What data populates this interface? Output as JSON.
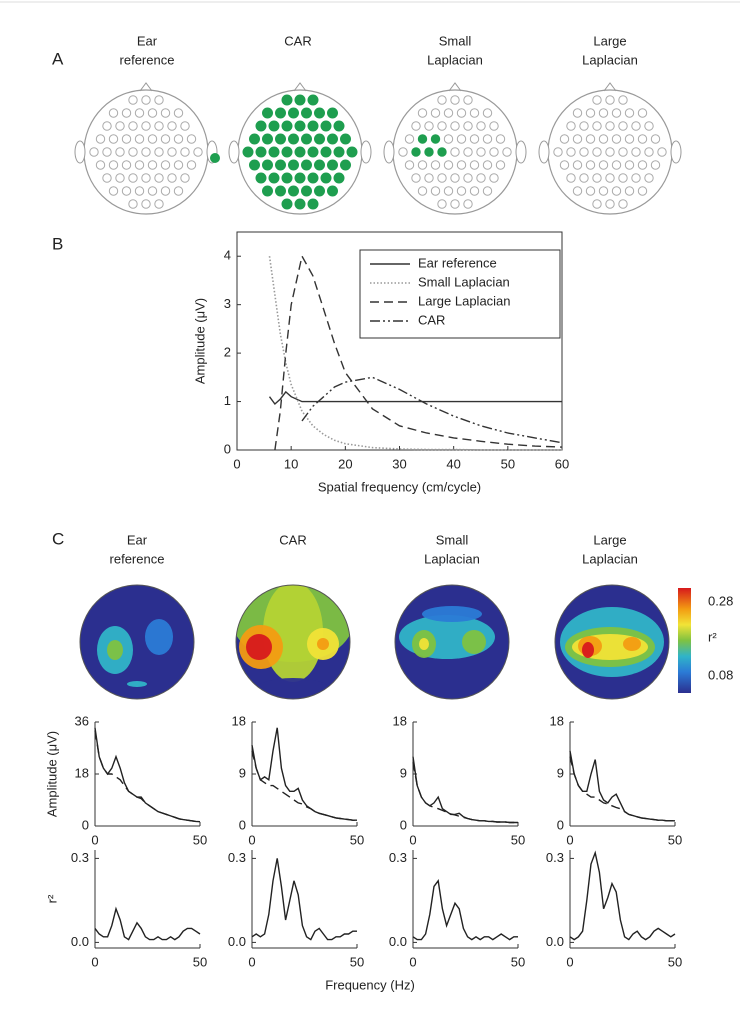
{
  "panel_labels": [
    "A",
    "B",
    "C"
  ],
  "panel_a": {
    "titles": [
      [
        "Ear",
        "reference"
      ],
      [
        "CAR"
      ],
      [
        "Small",
        "Laplacian"
      ],
      [
        "Large",
        "Laplacian"
      ]
    ]
  },
  "panel_c": {
    "titles": [
      [
        "Ear",
        "reference"
      ],
      [
        "CAR"
      ],
      [
        "Small",
        "Laplacian"
      ],
      [
        "Large",
        "Laplacian"
      ]
    ],
    "colorbar": {
      "labels": [
        "0.28",
        "r²",
        "0.08"
      ]
    },
    "x_label": "Frequency (Hz)"
  },
  "chart_data": [
    {
      "type": "line",
      "xlabel": "Spatial frequency (cm/cycle)",
      "ylabel": "Amplitude (μV)",
      "x": [
        6,
        7,
        8,
        9,
        10,
        12,
        14,
        16,
        18,
        20,
        25,
        30,
        35,
        40,
        45,
        50,
        55,
        60
      ],
      "xlim": [
        0,
        60
      ],
      "xticks": [
        0,
        10,
        20,
        30,
        40,
        50,
        60
      ],
      "ylim": [
        0,
        4.5
      ],
      "yticks": [
        0,
        1,
        2,
        3,
        4
      ],
      "legend": "upper right",
      "frame": true,
      "series": [
        {
          "name": "Ear reference",
          "color": "#333333",
          "dash": "solid",
          "values": [
            1.1,
            0.95,
            1.05,
            1.2,
            1.1,
            1.0,
            1.0,
            1.0,
            1.0,
            1.0,
            1.0,
            1.0,
            1.0,
            1.0,
            1.0,
            1.0,
            1.0,
            1.0
          ]
        },
        {
          "name": "Small Laplacian",
          "color": "#999999",
          "dash": "dotted",
          "values": [
            4.0,
            3.2,
            2.4,
            1.8,
            1.35,
            0.8,
            0.5,
            0.32,
            0.2,
            0.13,
            0.05,
            0.02,
            0.01,
            0.01,
            0,
            0,
            0,
            0
          ]
        },
        {
          "name": "Large Laplacian",
          "color": "#333333",
          "dash": "dashed",
          "values": [
            null,
            0.0,
            0.8,
            2.0,
            3.0,
            4.0,
            3.6,
            2.9,
            2.2,
            1.6,
            0.85,
            0.5,
            0.35,
            0.25,
            0.18,
            0.12,
            0.08,
            0.06
          ]
        },
        {
          "name": "CAR",
          "color": "#333333",
          "dash": "dash-dot-dot",
          "values": [
            null,
            null,
            null,
            null,
            null,
            0.6,
            0.9,
            1.1,
            1.3,
            1.4,
            1.5,
            1.25,
            0.95,
            0.7,
            0.5,
            0.35,
            0.25,
            0.15
          ]
        }
      ]
    },
    {
      "type": "line",
      "ylabel": "Amplitude (μV)",
      "x": [
        0,
        2,
        4,
        6,
        8,
        10,
        12,
        14,
        16,
        18,
        20,
        22,
        24,
        26,
        28,
        30,
        32,
        34,
        36,
        38,
        40,
        42,
        44,
        46,
        48,
        50
      ],
      "xlim": [
        0,
        50
      ],
      "xticks": [
        0,
        50
      ],
      "ylim": [
        0,
        36
      ],
      "yticks": [
        0,
        18,
        36
      ],
      "series": [
        {
          "color": "#222222",
          "dash": "solid",
          "values": [
            34,
            24,
            20,
            18,
            20,
            24,
            20,
            15,
            12,
            11,
            10,
            10,
            8,
            7,
            6,
            5,
            4.5,
            4,
            3.5,
            3,
            2.5,
            2.2,
            2,
            1.8,
            1.6,
            1.5
          ]
        },
        {
          "color": "#222222",
          "dash": "dashed",
          "values": [
            33,
            24,
            20,
            18,
            18,
            17,
            16,
            14,
            12,
            11,
            10,
            9.5,
            8,
            7,
            6,
            5,
            4.5,
            4,
            3.5,
            3,
            2.5,
            2.2,
            2,
            1.8,
            1.6,
            1.5
          ]
        }
      ]
    },
    {
      "type": "line",
      "x": [
        0,
        2,
        4,
        6,
        8,
        10,
        12,
        14,
        16,
        18,
        20,
        22,
        24,
        26,
        28,
        30,
        32,
        34,
        36,
        38,
        40,
        42,
        44,
        46,
        48,
        50
      ],
      "xlim": [
        0,
        50
      ],
      "xticks": [
        0,
        50
      ],
      "ylim": [
        0,
        18
      ],
      "yticks": [
        0,
        9,
        18
      ],
      "series": [
        {
          "color": "#222222",
          "dash": "solid",
          "values": [
            14,
            10,
            8,
            8.5,
            8,
            13,
            17,
            10,
            7,
            6,
            6,
            6.5,
            4.5,
            3.5,
            3,
            2.5,
            2.2,
            2,
            1.8,
            1.6,
            1.4,
            1.3,
            1.2,
            1.1,
            1,
            1
          ]
        },
        {
          "color": "#222222",
          "dash": "dashed",
          "values": [
            13,
            10,
            8,
            7.5,
            7,
            7,
            6.5,
            6,
            5.5,
            5,
            4.5,
            4,
            3.8,
            3.3,
            3,
            2.5,
            2.2,
            2,
            1.8,
            1.6,
            1.4,
            1.3,
            1.2,
            1.1,
            1,
            1
          ]
        }
      ]
    },
    {
      "type": "line",
      "x": [
        0,
        2,
        4,
        6,
        8,
        10,
        12,
        14,
        16,
        18,
        20,
        22,
        24,
        26,
        28,
        30,
        32,
        34,
        36,
        38,
        40,
        42,
        44,
        46,
        48,
        50
      ],
      "xlim": [
        0,
        50
      ],
      "xticks": [
        0,
        50
      ],
      "ylim": [
        0,
        18
      ],
      "yticks": [
        0,
        9,
        18
      ],
      "series": [
        {
          "color": "#222222",
          "dash": "solid",
          "values": [
            12,
            7,
            5,
            4,
            3.5,
            4,
            5,
            3,
            2.5,
            2,
            2,
            2.2,
            1.6,
            1.3,
            1.1,
            1,
            0.9,
            0.9,
            0.8,
            0.8,
            0.7,
            0.7,
            0.7,
            0.6,
            0.6,
            0.6
          ]
        },
        {
          "color": "#222222",
          "dash": "dashed",
          "values": [
            11,
            7,
            5,
            4,
            3.5,
            3.2,
            3,
            2.7,
            2.4,
            2.1,
            1.9,
            1.7,
            1.5,
            1.3,
            1.1,
            1,
            0.9,
            0.9,
            0.8,
            0.8,
            0.7,
            0.7,
            0.7,
            0.6,
            0.6,
            0.6
          ]
        }
      ]
    },
    {
      "type": "line",
      "x": [
        0,
        2,
        4,
        6,
        8,
        10,
        12,
        14,
        16,
        18,
        20,
        22,
        24,
        26,
        28,
        30,
        32,
        34,
        36,
        38,
        40,
        42,
        44,
        46,
        48,
        50
      ],
      "xlim": [
        0,
        50
      ],
      "xticks": [
        0,
        50
      ],
      "ylim": [
        0,
        18
      ],
      "yticks": [
        0,
        9,
        18
      ],
      "series": [
        {
          "color": "#222222",
          "dash": "solid",
          "values": [
            13,
            9,
            7,
            6,
            6,
            9,
            11.5,
            6,
            4.5,
            4,
            5,
            5.5,
            4,
            2.5,
            2,
            1.8,
            1.6,
            1.4,
            1.3,
            1.2,
            1.1,
            1,
            1,
            0.9,
            0.9,
            0.9
          ]
        },
        {
          "color": "#222222",
          "dash": "dashed",
          "values": [
            12,
            9,
            7,
            6,
            5.5,
            5,
            5,
            4.5,
            4,
            3.8,
            3.5,
            3.2,
            3,
            2.5,
            2,
            1.8,
            1.6,
            1.4,
            1.3,
            1.2,
            1.1,
            1,
            1,
            0.9,
            0.9,
            0.9
          ]
        }
      ]
    },
    {
      "type": "line",
      "ylabel": "r²",
      "x": [
        0,
        2,
        4,
        6,
        8,
        10,
        12,
        14,
        16,
        18,
        20,
        22,
        24,
        26,
        28,
        30,
        32,
        34,
        36,
        38,
        40,
        42,
        44,
        46,
        48,
        50
      ],
      "xlim": [
        0,
        50
      ],
      "xticks": [
        0,
        50
      ],
      "ylim": [
        -0.02,
        0.33
      ],
      "yticks": [
        {
          "value": 0,
          "label": "0.0"
        },
        0.3
      ],
      "series": [
        {
          "color": "#222222",
          "dash": "solid",
          "values": [
            0.05,
            0.03,
            0.02,
            0.02,
            0.06,
            0.12,
            0.08,
            0.02,
            0.01,
            0.04,
            0.07,
            0.05,
            0.02,
            0.01,
            0.01,
            0.02,
            0.01,
            0.01,
            0.02,
            0.01,
            0.02,
            0.04,
            0.05,
            0.05,
            0.04,
            0.03
          ]
        }
      ]
    },
    {
      "type": "line",
      "x": [
        0,
        2,
        4,
        6,
        8,
        10,
        12,
        14,
        16,
        18,
        20,
        22,
        24,
        26,
        28,
        30,
        32,
        34,
        36,
        38,
        40,
        42,
        44,
        46,
        48,
        50
      ],
      "xlim": [
        0,
        50
      ],
      "xticks": [
        0,
        50
      ],
      "ylim": [
        -0.02,
        0.33
      ],
      "yticks": [
        {
          "value": 0,
          "label": "0.0"
        },
        0.3
      ],
      "series": [
        {
          "color": "#222222",
          "dash": "solid",
          "values": [
            0.02,
            0.03,
            0.02,
            0.03,
            0.1,
            0.22,
            0.3,
            0.2,
            0.08,
            0.15,
            0.22,
            0.17,
            0.06,
            0.02,
            0.01,
            0.04,
            0.05,
            0.03,
            0.01,
            0.01,
            0.02,
            0.02,
            0.03,
            0.03,
            0.04,
            0.04
          ]
        }
      ]
    },
    {
      "type": "line",
      "x": [
        0,
        2,
        4,
        6,
        8,
        10,
        12,
        14,
        16,
        18,
        20,
        22,
        24,
        26,
        28,
        30,
        32,
        34,
        36,
        38,
        40,
        42,
        44,
        46,
        48,
        50
      ],
      "xlim": [
        0,
        50
      ],
      "xticks": [
        0,
        50
      ],
      "ylim": [
        -0.02,
        0.33
      ],
      "yticks": [
        {
          "value": 0,
          "label": "0.0"
        },
        0.3
      ],
      "series": [
        {
          "color": "#222222",
          "dash": "solid",
          "values": [
            0.02,
            0.01,
            0.01,
            0.03,
            0.1,
            0.2,
            0.22,
            0.12,
            0.06,
            0.1,
            0.14,
            0.12,
            0.05,
            0.02,
            0.01,
            0.02,
            0.01,
            0.02,
            0.02,
            0.01,
            0.02,
            0.03,
            0.02,
            0.01,
            0.02,
            0.02
          ]
        }
      ]
    },
    {
      "type": "line",
      "x": [
        0,
        2,
        4,
        6,
        8,
        10,
        12,
        14,
        16,
        18,
        20,
        22,
        24,
        26,
        28,
        30,
        32,
        34,
        36,
        38,
        40,
        42,
        44,
        46,
        48,
        50
      ],
      "xlim": [
        0,
        50
      ],
      "xticks": [
        0,
        50
      ],
      "ylim": [
        -0.02,
        0.33
      ],
      "yticks": [
        {
          "value": 0,
          "label": "0.0"
        },
        0.3
      ],
      "series": [
        {
          "color": "#222222",
          "dash": "solid",
          "values": [
            0.02,
            0.01,
            0.02,
            0.04,
            0.15,
            0.28,
            0.32,
            0.25,
            0.12,
            0.16,
            0.21,
            0.18,
            0.08,
            0.02,
            0.01,
            0.03,
            0.04,
            0.02,
            0.01,
            0.02,
            0.04,
            0.05,
            0.04,
            0.03,
            0.02,
            0.03
          ]
        }
      ]
    }
  ]
}
